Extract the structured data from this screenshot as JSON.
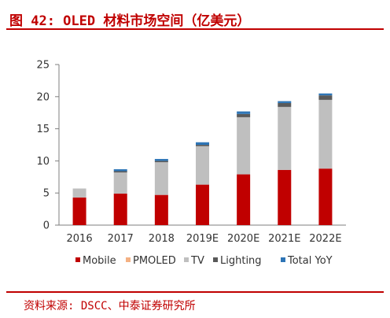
{
  "title": "图 42: OLED 材料市场空间（亿美元）",
  "source": "资料来源: DSCC、中泰证券研究所",
  "chart_data": {
    "type": "bar",
    "stacked": true,
    "title": "",
    "xlabel": "",
    "ylabel": "",
    "categories": [
      "2016",
      "2017",
      "2018",
      "2019E",
      "2020E",
      "2021E",
      "2022E"
    ],
    "ylim": [
      0,
      25
    ],
    "yticks": [
      0,
      5,
      10,
      15,
      20,
      25
    ],
    "grid": false,
    "legend_position": "bottom",
    "series": [
      {
        "name": "Mobile",
        "color": "#c00000",
        "values": [
          4.3,
          4.9,
          4.7,
          6.3,
          7.9,
          8.6,
          8.8
        ]
      },
      {
        "name": "PMOLED",
        "color": "#f4b183",
        "values": [
          0.0,
          0.0,
          0.0,
          0.0,
          0.0,
          0.0,
          0.0
        ]
      },
      {
        "name": "TV",
        "color": "#bfbfbf",
        "values": [
          1.4,
          3.3,
          5.1,
          6.0,
          8.9,
          9.8,
          10.7
        ]
      },
      {
        "name": "Lighting",
        "color": "#595959",
        "values": [
          0.0,
          0.2,
          0.2,
          0.2,
          0.5,
          0.6,
          0.7
        ]
      },
      {
        "name": "Total YoY",
        "color": "#2e75b6",
        "values": [
          0.0,
          0.3,
          0.3,
          0.4,
          0.4,
          0.3,
          0.3
        ]
      }
    ]
  }
}
